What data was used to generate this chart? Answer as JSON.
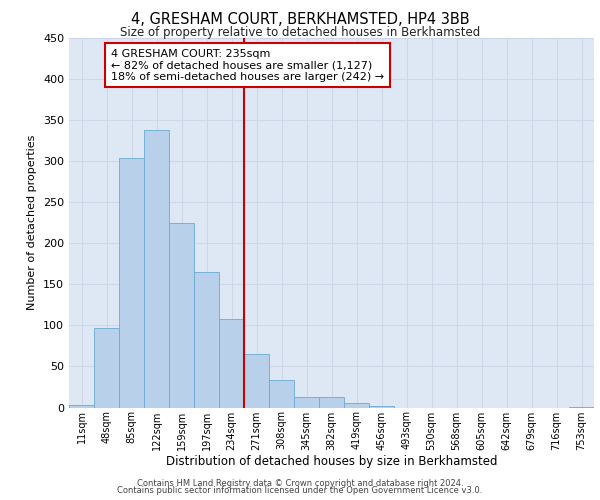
{
  "title": "4, GRESHAM COURT, BERKHAMSTED, HP4 3BB",
  "subtitle": "Size of property relative to detached houses in Berkhamsted",
  "xlabel": "Distribution of detached houses by size in Berkhamsted",
  "ylabel": "Number of detached properties",
  "bin_labels": [
    "11sqm",
    "48sqm",
    "85sqm",
    "122sqm",
    "159sqm",
    "197sqm",
    "234sqm",
    "271sqm",
    "308sqm",
    "345sqm",
    "382sqm",
    "419sqm",
    "456sqm",
    "493sqm",
    "530sqm",
    "568sqm",
    "605sqm",
    "642sqm",
    "679sqm",
    "716sqm",
    "753sqm"
  ],
  "bar_heights": [
    3,
    97,
    303,
    337,
    224,
    165,
    108,
    65,
    33,
    13,
    13,
    6,
    2,
    0,
    0,
    0,
    0,
    0,
    0,
    0,
    1
  ],
  "bar_color": "#b8d0ea",
  "bar_edge_color": "#6aaad4",
  "grid_color": "#ccd8ea",
  "background_color": "#dde8f4",
  "annotation_text": "4 GRESHAM COURT: 235sqm\n← 82% of detached houses are smaller (1,127)\n18% of semi-detached houses are larger (242) →",
  "annotation_box_color": "#ffffff",
  "annotation_border_color": "#cc0000",
  "red_line_x": 6.5,
  "ylim": [
    0,
    450
  ],
  "yticks": [
    0,
    50,
    100,
    150,
    200,
    250,
    300,
    350,
    400,
    450
  ],
  "footer_line1": "Contains HM Land Registry data © Crown copyright and database right 2024.",
  "footer_line2": "Contains public sector information licensed under the Open Government Licence v3.0."
}
